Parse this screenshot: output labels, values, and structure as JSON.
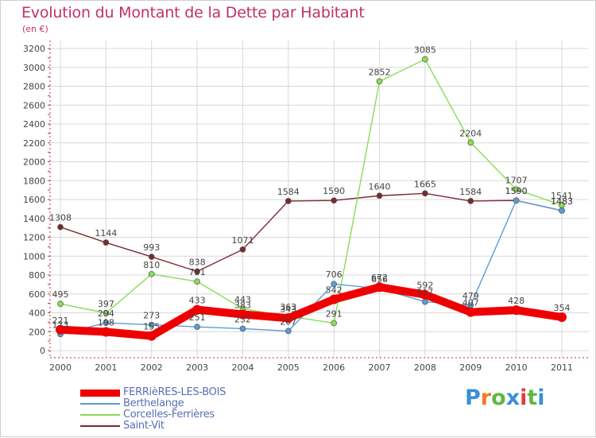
{
  "title": "Evolution du Montant de la Dette par Habitant",
  "unit_label": "(en €)",
  "logo": {
    "text": "Proxiti",
    "colors": [
      "#3b8fd6",
      "#ef7b22",
      "#5fb844",
      "#3b8fd6",
      "#e43c3c",
      "#5fb844",
      "#3b8fd6"
    ]
  },
  "colors": {
    "title": "#c0306a",
    "axis": "#c03040",
    "label": "#444444",
    "legend_text": "#5870b4",
    "grid": "#d8d8d8"
  },
  "chart_data": {
    "type": "line",
    "title": "Evolution du Montant de la Dette par Habitant",
    "xlabel": "",
    "ylabel": "(en €)",
    "ylim": [
      0,
      3200
    ],
    "yticks": [
      0,
      200,
      400,
      600,
      800,
      1000,
      1200,
      1400,
      1600,
      1800,
      2000,
      2200,
      2400,
      2600,
      2800,
      3000,
      3200
    ],
    "categories": [
      "2000",
      "2001",
      "2002",
      "2003",
      "2004",
      "2005",
      "2006",
      "2007",
      "2008",
      "2009",
      "2010",
      "2011"
    ],
    "grid": true,
    "legend_position": "bottom-left",
    "series": [
      {
        "name": "FERRièRES-LES-BOIS",
        "color": "#ee0000",
        "values": [
          221,
          198,
          155,
          433,
          383,
          343,
          542,
          672,
          592,
          407,
          428,
          354
        ]
      },
      {
        "name": "Berthelange",
        "color": "#5b9bd5",
        "values": [
          173,
          294,
          273,
          251,
          232,
          207,
          706,
          656,
          517,
          479,
          1590,
          1483
        ]
      },
      {
        "name": "Corcelles-Ferrières",
        "color": "#88dd55",
        "values": [
          495,
          397,
          810,
          731,
          443,
          363,
          291,
          2852,
          3085,
          2204,
          1707,
          1541
        ]
      },
      {
        "name": "Saint-Vit",
        "color": "#7a2a30",
        "values": [
          1308,
          1144,
          993,
          838,
          1071,
          1584,
          1590,
          1640,
          1665,
          1584,
          1590,
          1483
        ]
      }
    ]
  }
}
